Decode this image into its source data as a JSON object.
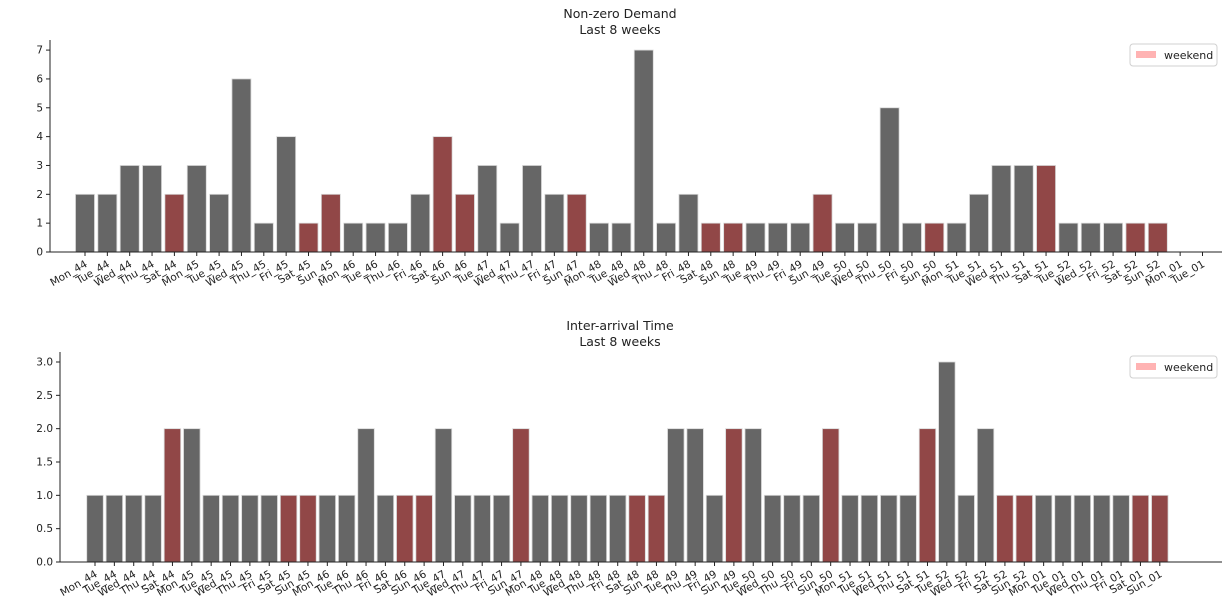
{
  "colors": {
    "weekday": "#666666",
    "weekend": "#914747",
    "legend_patch": "#ffb3b3",
    "axis": "#222222"
  },
  "chart_data": [
    {
      "type": "bar",
      "title": "Non-zero Demand",
      "subtitle": "Last 8 weeks",
      "xlabel": "",
      "ylabel": "",
      "ylim": [
        0,
        7.35
      ],
      "yticks": [
        "0",
        "1",
        "2",
        "3",
        "4",
        "5",
        "6",
        "7"
      ],
      "ytick_values": [
        0,
        1,
        2,
        3,
        4,
        5,
        6,
        7
      ],
      "grid": false,
      "legend": {
        "label": "weekend",
        "placement": "top-right"
      },
      "categories": [
        "Mon_44",
        "Tue_44",
        "Wed_44",
        "Thu_44",
        "Sat_44",
        "Mon_45",
        "Tue_45",
        "Wed_45",
        "Thu_45",
        "Fri_45",
        "Sat_45",
        "Sun_45",
        "Mon_46",
        "Tue_46",
        "Thu_46",
        "Fri_46",
        "Sat_46",
        "Sun_46",
        "Tue_47",
        "Wed_47",
        "Thu_47",
        "Fri_47",
        "Sun_47",
        "Mon_48",
        "Tue_48",
        "Wed_48",
        "Thu_48",
        "Fri_48",
        "Sat_48",
        "Sun_48",
        "Tue_49",
        "Thu_49",
        "Fri_49",
        "Sun_49",
        "Tue_50",
        "Wed_50",
        "Thu_50",
        "Fri_50",
        "Sun_50",
        "Mon_51",
        "Tue_51",
        "Wed_51",
        "Thu_51",
        "Sat_51",
        "Tue_52",
        "Wed_52",
        "Fri_52",
        "Sat_52",
        "Sun_52",
        "Mon_01",
        "Tue_01"
      ],
      "values": [
        2,
        2,
        3,
        3,
        2,
        3,
        2,
        6,
        1,
        4,
        1,
        2,
        1,
        1,
        1,
        2,
        4,
        2,
        3,
        1,
        3,
        2,
        2,
        1,
        1,
        7,
        1,
        2,
        1,
        1,
        1,
        1,
        1,
        2,
        1,
        1,
        5,
        1,
        1,
        1,
        2,
        3,
        3,
        3,
        1,
        1,
        1,
        1,
        1,
        null,
        null
      ],
      "weekend": [
        0,
        0,
        0,
        0,
        1,
        0,
        0,
        0,
        0,
        0,
        1,
        1,
        0,
        0,
        0,
        0,
        1,
        1,
        0,
        0,
        0,
        0,
        1,
        0,
        0,
        0,
        0,
        0,
        1,
        1,
        0,
        0,
        0,
        1,
        0,
        0,
        0,
        0,
        1,
        0,
        0,
        0,
        0,
        1,
        0,
        0,
        0,
        1,
        1,
        0,
        0
      ]
    },
    {
      "type": "bar",
      "title": "Inter-arrival Time",
      "subtitle": "Last 8 weeks",
      "xlabel": "",
      "ylabel": "",
      "ylim": [
        0,
        3.15
      ],
      "yticks": [
        "0.0",
        "0.5",
        "1.0",
        "1.5",
        "2.0",
        "2.5",
        "3.0"
      ],
      "ytick_values": [
        0,
        0.5,
        1,
        1.5,
        2,
        2.5,
        3
      ],
      "grid": false,
      "legend": {
        "label": "weekend",
        "placement": "top-right"
      },
      "categories": [
        "Mon_44",
        "Tue_44",
        "Wed_44",
        "Thu_44",
        "Sat_44",
        "Mon_45",
        "Tue_45",
        "Wed_45",
        "Thu_45",
        "Fri_45",
        "Sat_45",
        "Sun_45",
        "Mon_46",
        "Tue_46",
        "Thu_46",
        "Fri_46",
        "Sat_46",
        "Sun_46",
        "Tue_47",
        "Wed_47",
        "Thu_47",
        "Fri_47",
        "Sun_47",
        "Mon_48",
        "Tue_48",
        "Wed_48",
        "Thu_48",
        "Fri_48",
        "Sat_48",
        "Sun_48",
        "Tue_49",
        "Thu_49",
        "Fri_49",
        "Sun_49",
        "Tue_50",
        "Wed_50",
        "Thu_50",
        "Fri_50",
        "Sun_50",
        "Mon_51",
        "Tue_51",
        "Wed_51",
        "Thu_51",
        "Sat_51",
        "Tue_52",
        "Wed_52",
        "Fri_52",
        "Sat_52",
        "Sun_52",
        "Mon_01",
        "Tue_01",
        "Wed_01",
        "Thu_01",
        "Fri_01",
        "Sat_01",
        "Sun_01"
      ],
      "values": [
        1,
        1,
        1,
        1,
        2,
        2,
        1,
        1,
        1,
        1,
        1,
        1,
        1,
        1,
        2,
        1,
        1,
        1,
        2,
        1,
        1,
        1,
        2,
        1,
        1,
        1,
        1,
        1,
        1,
        1,
        2,
        2,
        1,
        2,
        2,
        1,
        1,
        1,
        2,
        1,
        1,
        1,
        1,
        2,
        3,
        1,
        2,
        1,
        1,
        1,
        1,
        1,
        1,
        1,
        1,
        1
      ],
      "weekend": [
        0,
        0,
        0,
        0,
        1,
        0,
        0,
        0,
        0,
        0,
        1,
        1,
        0,
        0,
        0,
        0,
        1,
        1,
        0,
        0,
        0,
        0,
        1,
        0,
        0,
        0,
        0,
        0,
        1,
        1,
        0,
        0,
        0,
        1,
        0,
        0,
        0,
        0,
        1,
        0,
        0,
        0,
        0,
        1,
        0,
        0,
        0,
        1,
        1,
        0,
        0,
        0,
        0,
        0,
        1,
        1
      ]
    }
  ]
}
